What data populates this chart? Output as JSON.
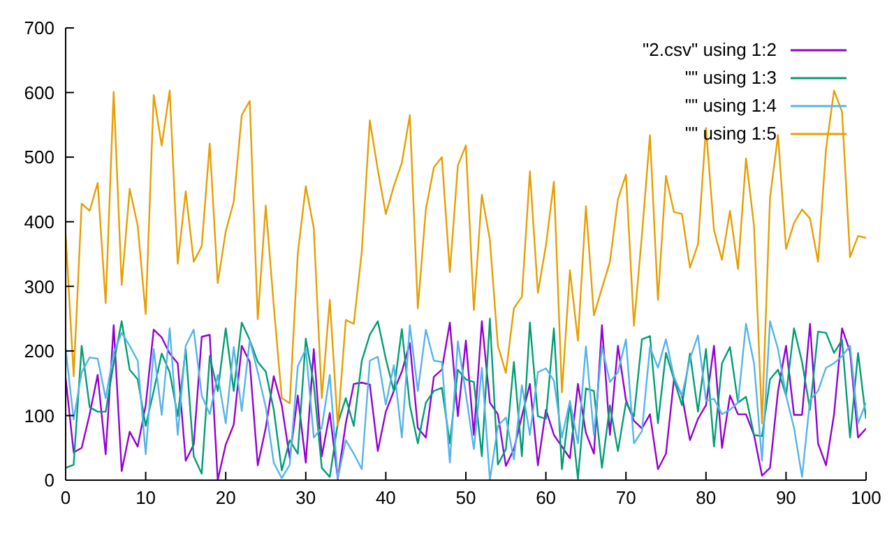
{
  "chart_data": {
    "type": "line",
    "x": [
      0,
      1,
      2,
      3,
      4,
      5,
      6,
      7,
      8,
      9,
      10,
      11,
      12,
      13,
      14,
      15,
      16,
      17,
      18,
      19,
      20,
      21,
      22,
      23,
      24,
      25,
      26,
      27,
      28,
      29,
      30,
      31,
      32,
      33,
      34,
      35,
      36,
      37,
      38,
      39,
      40,
      41,
      42,
      43,
      44,
      45,
      46,
      47,
      48,
      49,
      50,
      51,
      52,
      53,
      54,
      55,
      56,
      57,
      58,
      59,
      60,
      61,
      62,
      63,
      64,
      65,
      66,
      67,
      68,
      69,
      70,
      71,
      72,
      73,
      74,
      75,
      76,
      77,
      78,
      79,
      80,
      81,
      82,
      83,
      84,
      85,
      86,
      87,
      88,
      89,
      90,
      91,
      92,
      93,
      94,
      95,
      96,
      97,
      98,
      99,
      100
    ],
    "xlim": [
      0,
      100
    ],
    "xticks": [
      0,
      10,
      20,
      30,
      40,
      50,
      60,
      70,
      80,
      90,
      100
    ],
    "ylim": [
      0,
      700
    ],
    "yticks": [
      0,
      100,
      200,
      300,
      400,
      500,
      600,
      700
    ],
    "grid": false,
    "legend": "top right",
    "marker": "none",
    "line_style": "solid",
    "series": [
      {
        "name": "\"2.csv\" using 1:2",
        "color": "#9400d3",
        "values": [
          158,
          43,
          50,
          102,
          163,
          40,
          240,
          14,
          75,
          52,
          116,
          233,
          221,
          196,
          181,
          30,
          55,
          222,
          225,
          0,
          55,
          86,
          208,
          183,
          23,
          81,
          161,
          116,
          34,
          131,
          27,
          203,
          37,
          104,
          2,
          88,
          149,
          151,
          148,
          45,
          106,
          138,
          168,
          212,
          81,
          66,
          160,
          171,
          244,
          99,
          216,
          70,
          246,
          120,
          102,
          22,
          48,
          99,
          149,
          23,
          109,
          70,
          52,
          34,
          149,
          73,
          41,
          240,
          70,
          208,
          124,
          92,
          80,
          102,
          17,
          41,
          156,
          131,
          62,
          95,
          116,
          208,
          50,
          131,
          102,
          102,
          70,
          7,
          19,
          138,
          208,
          101,
          101,
          242,
          57,
          23,
          102,
          235,
          199,
          66,
          80
        ]
      },
      {
        "name": "\"\" using 1:3",
        "color": "#009e73",
        "values": [
          19,
          24,
          208,
          113,
          106,
          106,
          181,
          246,
          171,
          156,
          84,
          138,
          196,
          167,
          99,
          203,
          37,
          10,
          192,
          138,
          235,
          138,
          244,
          217,
          183,
          168,
          109,
          15,
          62,
          41,
          219,
          149,
          19,
          5,
          88,
          127,
          84,
          185,
          225,
          246,
          188,
          138,
          234,
          116,
          57,
          120,
          138,
          143,
          57,
          171,
          156,
          152,
          37,
          250,
          24,
          48,
          183,
          37,
          244,
          99,
          95,
          235,
          17,
          120,
          2,
          142,
          138,
          19,
          116,
          45,
          120,
          99,
          218,
          223,
          88,
          197,
          156,
          116,
          196,
          106,
          203,
          52,
          181,
          206,
          120,
          129,
          70,
          68,
          156,
          171,
          131,
          235,
          183,
          109,
          230,
          228,
          197,
          217,
          66,
          197,
          95
        ]
      },
      {
        "name": "\"\" using 1:4",
        "color": "#56b4e9",
        "values": [
          203,
          94,
          167,
          190,
          188,
          127,
          197,
          228,
          208,
          185,
          40,
          203,
          101,
          235,
          70,
          208,
          233,
          131,
          102,
          163,
          88,
          206,
          107,
          217,
          167,
          113,
          27,
          3,
          24,
          176,
          203,
          66,
          81,
          163,
          3,
          62,
          41,
          17,
          185,
          191,
          117,
          178,
          66,
          240,
          138,
          233,
          185,
          183,
          27,
          215,
          134,
          48,
          174,
          0,
          84,
          97,
          32,
          147,
          70,
          167,
          173,
          154,
          66,
          123,
          57,
          207,
          70,
          207,
          152,
          167,
          218,
          57,
          76,
          206,
          174,
          218,
          160,
          131,
          188,
          224,
          123,
          126,
          102,
          109,
          120,
          242,
          181,
          30,
          246,
          203,
          131,
          81,
          5,
          124,
          138,
          174,
          181,
          192,
          208,
          88,
          120
        ]
      },
      {
        "name": "\"\" using 1:5",
        "color": "#e69f00",
        "values": [
          381,
          161,
          428,
          417,
          460,
          274,
          601,
          302,
          451,
          394,
          257,
          596,
          518,
          603,
          335,
          447,
          338,
          362,
          521,
          305,
          385,
          431,
          565,
          587,
          249,
          425,
          270,
          127,
          119,
          350,
          455,
          390,
          127,
          279,
          84,
          248,
          242,
          354,
          557,
          480,
          412,
          455,
          491,
          565,
          266,
          419,
          484,
          500,
          322,
          487,
          518,
          263,
          442,
          372,
          208,
          166,
          266,
          284,
          478,
          290,
          363,
          462,
          136,
          325,
          216,
          424,
          255,
          297,
          338,
          435,
          473,
          239,
          380,
          534,
          279,
          471,
          415,
          412,
          329,
          365,
          545,
          387,
          341,
          417,
          327,
          498,
          394,
          88,
          437,
          534,
          358,
          398,
          419,
          405,
          338,
          513,
          603,
          570,
          345,
          378,
          375
        ]
      }
    ]
  }
}
